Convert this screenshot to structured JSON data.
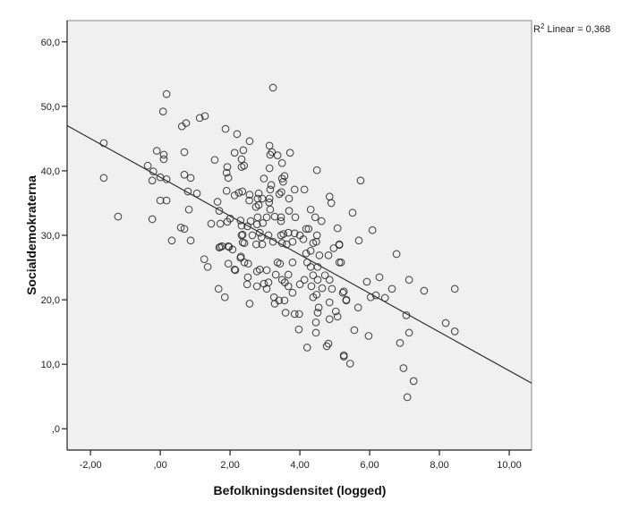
{
  "chart_data": {
    "type": "scatter",
    "title": "",
    "xlabel": "Befolkningsdensitet (logged)",
    "ylabel": "Socialdemokraterna",
    "xlim": [
      -2.67,
      10.64
    ],
    "ylim": [
      -3.3,
      63.3
    ],
    "x_ticks": [
      -2,
      0,
      2,
      4,
      6,
      8,
      10
    ],
    "x_tick_labels": [
      "-2,00",
      ",00",
      "2,00",
      "4,00",
      "6,00",
      "8,00",
      "10,00"
    ],
    "y_ticks": [
      0,
      10,
      20,
      30,
      40,
      50,
      60
    ],
    "y_tick_labels": [
      ",0",
      "10,0",
      "20,0",
      "30,0",
      "40,0",
      "50,0",
      "60,0"
    ],
    "grid": false,
    "fit_line": {
      "type": "linear",
      "intercept": 39.0,
      "slope": -3.0,
      "label_prefix": "R",
      "label_superscript": "2",
      "label_text": " Linear = 0,368"
    },
    "points": [
      [
        0.18,
        51.9
      ],
      [
        0.08,
        49.2
      ],
      [
        0.62,
        46.9
      ],
      [
        0.74,
        47.4
      ],
      [
        1.13,
        48.2
      ],
      [
        1.28,
        48.5
      ],
      [
        1.87,
        46.5
      ],
      [
        2.2,
        45.7
      ],
      [
        -1.62,
        44.3
      ],
      [
        -0.1,
        43.1
      ],
      [
        0.1,
        42.5
      ],
      [
        0.1,
        41.8
      ],
      [
        0.69,
        42.9
      ],
      [
        1.56,
        41.7
      ],
      [
        2.13,
        42.8
      ],
      [
        1.92,
        40.6
      ],
      [
        1.9,
        39.7
      ],
      [
        1.95,
        38.9
      ],
      [
        -0.36,
        40.8
      ],
      [
        -0.2,
        39.9
      ],
      [
        -0.23,
        38.5
      ],
      [
        0.0,
        39.0
      ],
      [
        0.18,
        38.7
      ],
      [
        -1.62,
        38.9
      ],
      [
        0.69,
        39.4
      ],
      [
        0.87,
        38.9
      ],
      [
        0.79,
        36.8
      ],
      [
        1.05,
        36.5
      ],
      [
        1.9,
        36.9
      ],
      [
        2.13,
        36.2
      ],
      [
        2.25,
        36.6
      ],
      [
        2.35,
        36.8
      ],
      [
        0.0,
        35.4
      ],
      [
        0.18,
        35.4
      ],
      [
        1.64,
        35.2
      ],
      [
        1.69,
        33.8
      ],
      [
        0.82,
        34.0
      ],
      [
        -1.21,
        32.9
      ],
      [
        -0.23,
        32.5
      ],
      [
        1.46,
        31.8
      ],
      [
        1.72,
        31.8
      ],
      [
        1.92,
        32.1
      ],
      [
        2.0,
        32.6
      ],
      [
        0.59,
        31.2
      ],
      [
        0.69,
        31.0
      ],
      [
        0.33,
        29.2
      ],
      [
        0.87,
        29.2
      ],
      [
        1.69,
        28.1
      ],
      [
        1.77,
        28.3
      ],
      [
        1.97,
        28.2
      ],
      [
        2.07,
        27.8
      ],
      [
        2.3,
        32.3
      ],
      [
        2.33,
        30.0
      ],
      [
        2.36,
        28.9
      ],
      [
        1.26,
        26.3
      ],
      [
        1.36,
        25.1
      ],
      [
        1.95,
        25.6
      ],
      [
        2.13,
        24.7
      ],
      [
        2.3,
        26.5
      ],
      [
        1.67,
        21.7
      ],
      [
        1.85,
        20.4
      ],
      [
        3.23,
        52.9
      ],
      [
        2.56,
        44.6
      ],
      [
        3.13,
        43.9
      ],
      [
        3.15,
        42.5
      ],
      [
        3.2,
        42.9
      ],
      [
        3.36,
        42.4
      ],
      [
        3.72,
        42.8
      ],
      [
        3.49,
        41.2
      ],
      [
        2.38,
        43.2
      ],
      [
        2.33,
        41.8
      ],
      [
        2.33,
        40.6
      ],
      [
        2.4,
        40.8
      ],
      [
        4.49,
        40.1
      ],
      [
        3.13,
        40.4
      ],
      [
        2.97,
        38.8
      ],
      [
        3.49,
        38.8
      ],
      [
        3.56,
        39.2
      ],
      [
        3.52,
        38.3
      ],
      [
        3.18,
        37.8
      ],
      [
        3.15,
        37.1
      ],
      [
        3.85,
        37.1
      ],
      [
        4.13,
        37.1
      ],
      [
        3.41,
        36.4
      ],
      [
        3.47,
        36.7
      ],
      [
        2.56,
        36.3
      ],
      [
        2.82,
        36.5
      ],
      [
        2.79,
        35.7
      ],
      [
        2.55,
        35.4
      ],
      [
        2.92,
        35.7
      ],
      [
        3.69,
        35.7
      ],
      [
        4.85,
        36.0
      ],
      [
        4.9,
        35.0
      ],
      [
        3.13,
        35.7
      ],
      [
        3.12,
        35.1
      ],
      [
        2.74,
        34.4
      ],
      [
        2.82,
        34.7
      ],
      [
        3.15,
        34.0
      ],
      [
        3.69,
        33.8
      ],
      [
        4.31,
        34.0
      ],
      [
        3.87,
        32.8
      ],
      [
        4.44,
        32.8
      ],
      [
        4.62,
        32.2
      ],
      [
        3.05,
        32.8
      ],
      [
        3.28,
        32.9
      ],
      [
        3.46,
        32.8
      ],
      [
        3.46,
        32.2
      ],
      [
        2.79,
        32.8
      ],
      [
        2.77,
        31.7
      ],
      [
        2.59,
        32.2
      ],
      [
        2.33,
        31.5
      ],
      [
        2.5,
        31.4
      ],
      [
        2.94,
        31.9
      ],
      [
        4.18,
        31.0
      ],
      [
        4.25,
        31.0
      ],
      [
        5.08,
        31.1
      ],
      [
        2.36,
        30.1
      ],
      [
        2.64,
        30.0
      ],
      [
        2.85,
        30.4
      ],
      [
        2.9,
        29.7
      ],
      [
        3.1,
        30.0
      ],
      [
        3.46,
        30.0
      ],
      [
        3.53,
        30.2
      ],
      [
        3.67,
        30.4
      ],
      [
        3.85,
        30.3
      ],
      [
        4.0,
        30.0
      ],
      [
        4.1,
        29.4
      ],
      [
        4.49,
        30.0
      ],
      [
        4.47,
        29.0
      ],
      [
        4.38,
        28.8
      ],
      [
        5.13,
        28.6
      ],
      [
        4.97,
        28.0
      ],
      [
        2.41,
        28.8
      ],
      [
        2.75,
        28.6
      ],
      [
        2.92,
        28.6
      ],
      [
        3.23,
        29.0
      ],
      [
        3.49,
        28.8
      ],
      [
        3.62,
        28.6
      ],
      [
        3.79,
        29.0
      ],
      [
        1.72,
        28.2
      ],
      [
        1.95,
        28.3
      ],
      [
        2.31,
        26.7
      ],
      [
        2.41,
        25.8
      ],
      [
        2.52,
        25.6
      ],
      [
        2.15,
        24.6
      ],
      [
        2.77,
        24.4
      ],
      [
        2.85,
        24.7
      ],
      [
        3.05,
        24.6
      ],
      [
        3.36,
        25.8
      ],
      [
        3.43,
        25.6
      ],
      [
        3.79,
        25.8
      ],
      [
        4.18,
        27.2
      ],
      [
        4.31,
        27.6
      ],
      [
        4.56,
        26.9
      ],
      [
        4.82,
        26.9
      ],
      [
        5.13,
        28.5
      ],
      [
        5.13,
        25.8
      ],
      [
        4.51,
        25.1
      ],
      [
        4.21,
        25.8
      ],
      [
        4.31,
        25.1
      ],
      [
        2.51,
        23.5
      ],
      [
        2.49,
        22.4
      ],
      [
        2.77,
        22.1
      ],
      [
        2.97,
        22.5
      ],
      [
        3.1,
        22.7
      ],
      [
        3.05,
        21.7
      ],
      [
        3.31,
        23.9
      ],
      [
        3.49,
        23.1
      ],
      [
        3.57,
        22.7
      ],
      [
        3.67,
        23.9
      ],
      [
        3.67,
        22.1
      ],
      [
        3.79,
        21.1
      ],
      [
        4.0,
        22.4
      ],
      [
        4.13,
        23.1
      ],
      [
        4.33,
        22.1
      ],
      [
        4.38,
        23.8
      ],
      [
        4.51,
        23.1
      ],
      [
        4.72,
        23.8
      ],
      [
        4.85,
        23.1
      ],
      [
        4.64,
        21.8
      ],
      [
        4.92,
        21.7
      ],
      [
        5.23,
        21.1
      ],
      [
        5.33,
        20.0
      ],
      [
        4.38,
        20.4
      ],
      [
        4.48,
        20.8
      ],
      [
        4.85,
        19.6
      ],
      [
        2.56,
        19.4
      ],
      [
        3.26,
        20.4
      ],
      [
        3.28,
        19.4
      ],
      [
        3.4,
        19.9
      ],
      [
        3.56,
        19.9
      ],
      [
        3.59,
        18.0
      ],
      [
        3.85,
        17.8
      ],
      [
        3.98,
        17.8
      ],
      [
        4.54,
        18.8
      ],
      [
        4.51,
        18.0
      ],
      [
        5.03,
        18.2
      ],
      [
        5.08,
        17.4
      ],
      [
        4.85,
        17.0
      ],
      [
        4.46,
        16.5
      ],
      [
        3.97,
        15.4
      ],
      [
        4.46,
        14.9
      ],
      [
        4.21,
        12.6
      ],
      [
        4.82,
        13.2
      ],
      [
        4.77,
        12.8
      ],
      [
        5.26,
        11.4
      ],
      [
        5.74,
        38.5
      ],
      [
        5.51,
        33.5
      ],
      [
        6.08,
        30.8
      ],
      [
        5.69,
        29.2
      ],
      [
        6.77,
        27.1
      ],
      [
        5.18,
        25.8
      ],
      [
        5.92,
        22.8
      ],
      [
        6.28,
        23.5
      ],
      [
        7.13,
        23.1
      ],
      [
        5.26,
        21.3
      ],
      [
        5.33,
        19.9
      ],
      [
        6.03,
        20.4
      ],
      [
        6.18,
        20.7
      ],
      [
        6.44,
        20.3
      ],
      [
        6.64,
        21.7
      ],
      [
        7.56,
        21.4
      ],
      [
        8.44,
        21.7
      ],
      [
        5.67,
        18.8
      ],
      [
        7.05,
        17.6
      ],
      [
        8.18,
        16.4
      ],
      [
        8.44,
        15.1
      ],
      [
        5.56,
        15.3
      ],
      [
        5.97,
        14.4
      ],
      [
        7.13,
        14.9
      ],
      [
        6.87,
        13.3
      ],
      [
        5.26,
        11.2
      ],
      [
        5.44,
        10.1
      ],
      [
        6.97,
        9.4
      ],
      [
        7.26,
        7.4
      ],
      [
        7.08,
        4.9
      ]
    ]
  }
}
